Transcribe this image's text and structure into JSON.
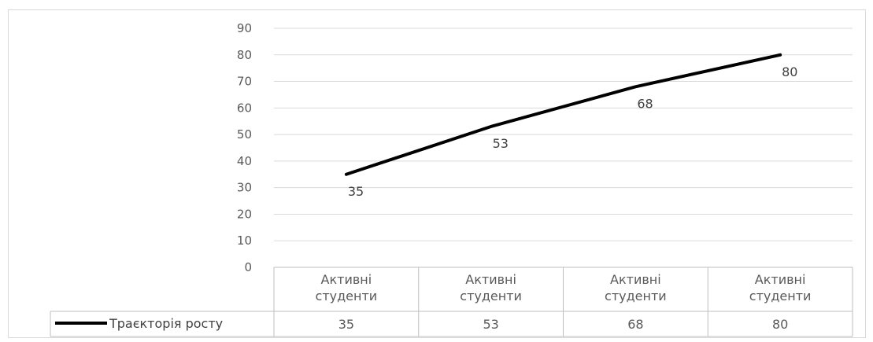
{
  "chart_data": {
    "type": "line",
    "categories": [
      "Активні студенти",
      "Активні студенти",
      "Активні студенти",
      "Активні студенти"
    ],
    "series": [
      {
        "name": "Траєкторія росту",
        "values": [
          35,
          53,
          68,
          80
        ],
        "color": "#000000"
      }
    ],
    "ylim": [
      0,
      90
    ],
    "yticks": [
      "0",
      "10",
      "20",
      "30",
      "40",
      "50",
      "60",
      "70",
      "80",
      "90"
    ],
    "grid": true,
    "data_table": true,
    "data_labels": [
      "35",
      "53",
      "68",
      "80"
    ],
    "table_values": [
      "35",
      "53",
      "68",
      "80"
    ],
    "legend_label": "Траєкторія росту"
  }
}
